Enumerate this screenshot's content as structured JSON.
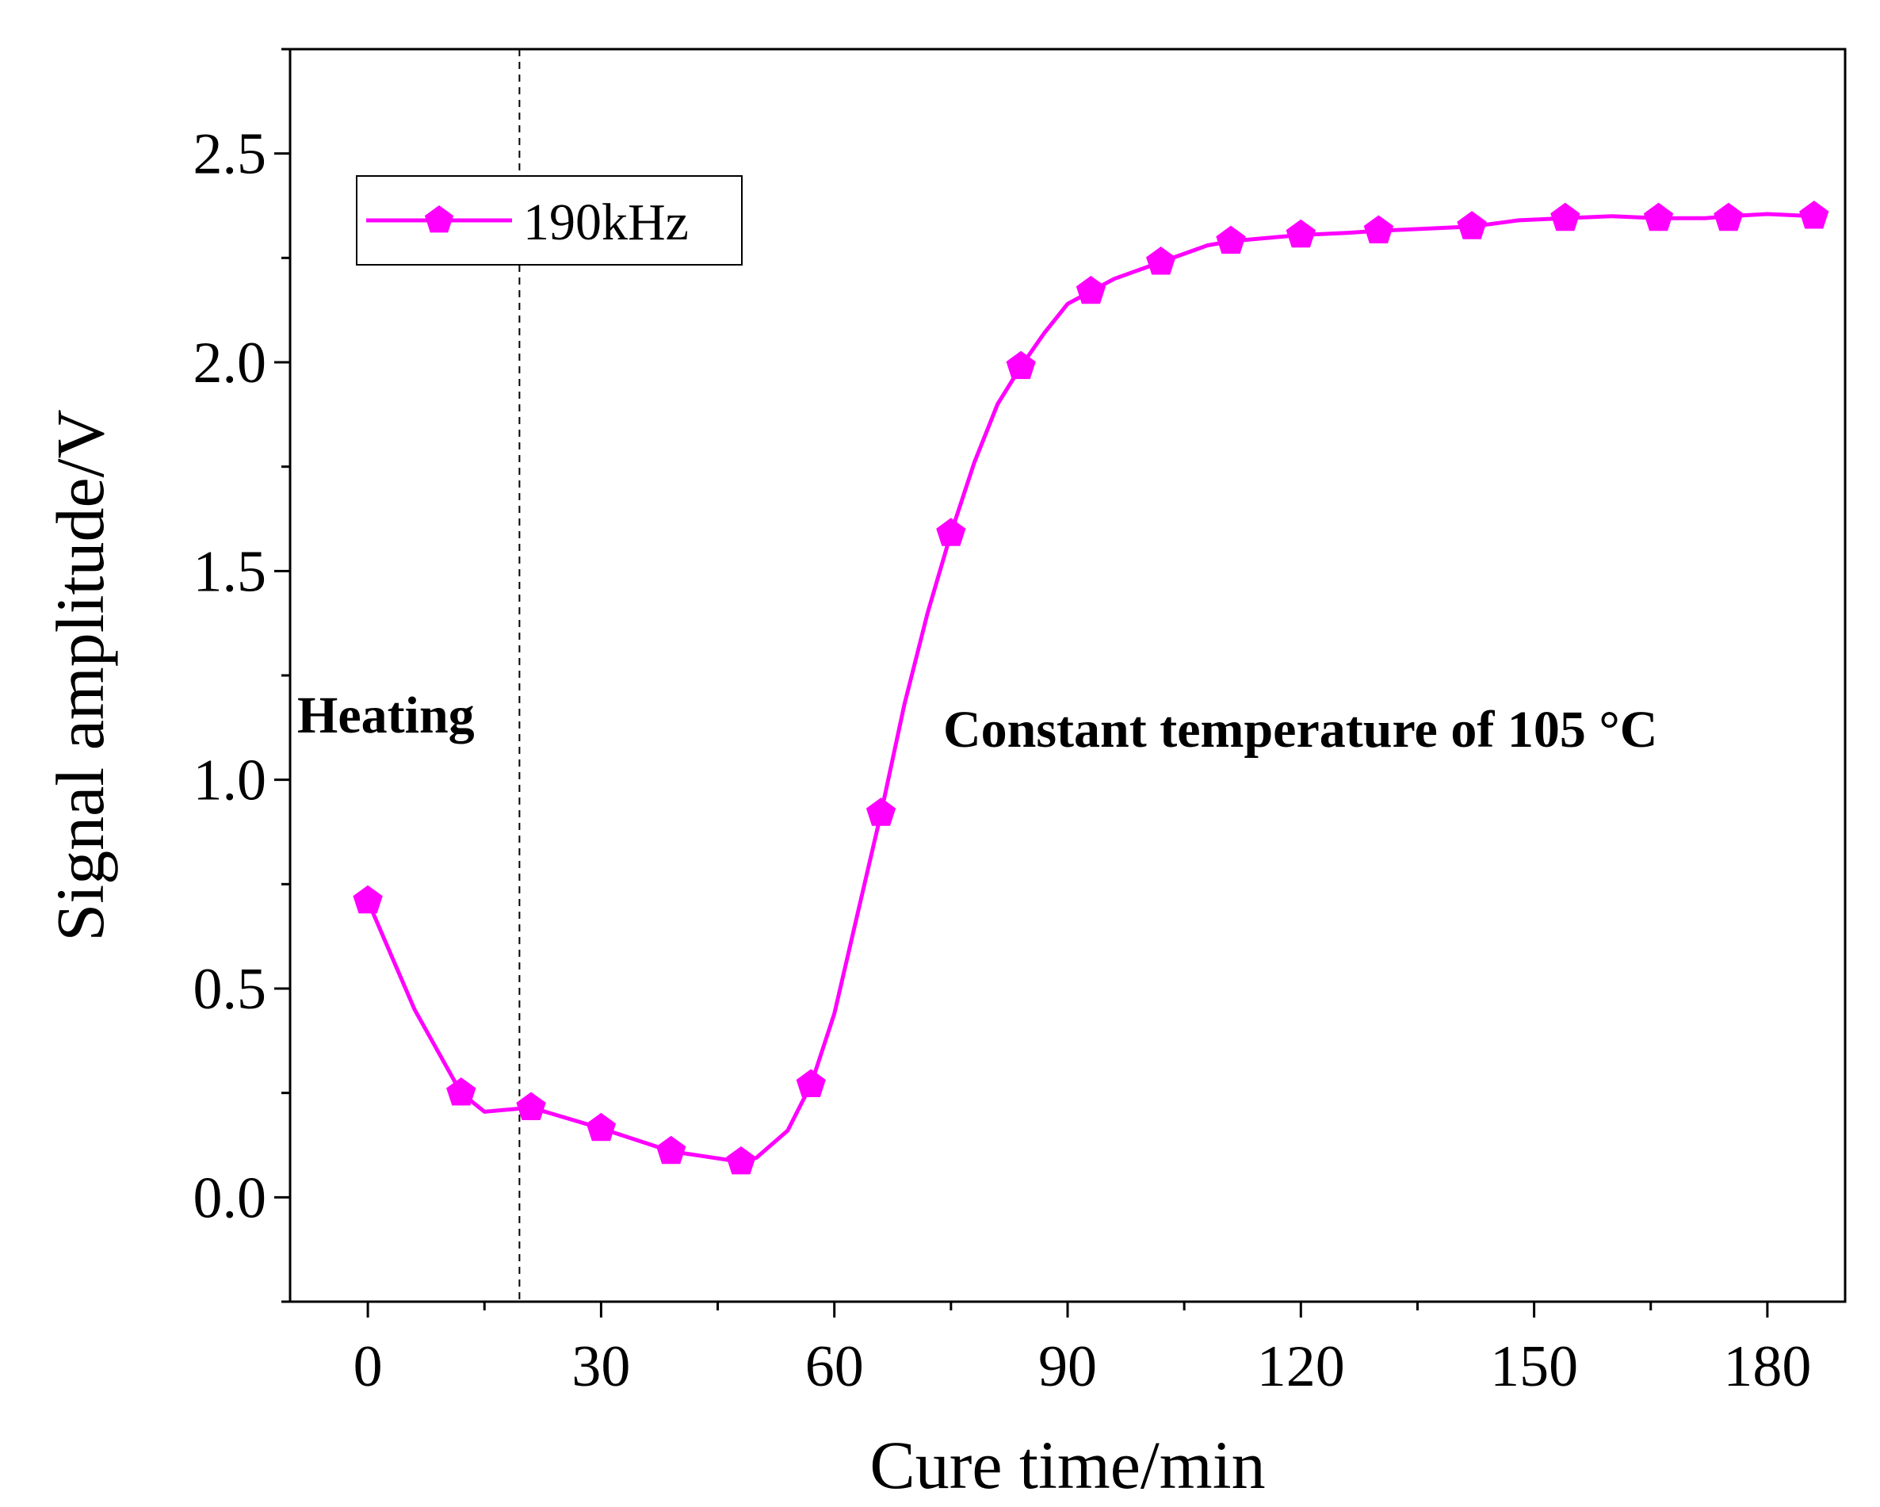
{
  "chart_data": {
    "type": "line",
    "xlabel": "Cure time/min",
    "ylabel": "Signal amplitude/V",
    "xlim": [
      -10,
      190
    ],
    "ylim": [
      -0.25,
      2.75
    ],
    "xticks": [
      0,
      30,
      60,
      90,
      120,
      150,
      180
    ],
    "xtick_labels": [
      "0",
      "30",
      "60",
      "90",
      "120",
      "150",
      "180"
    ],
    "yticks": [
      0.0,
      0.5,
      1.0,
      1.5,
      2.0,
      2.5
    ],
    "ytick_labels": [
      "0.0",
      "0.5",
      "1.0",
      "1.5",
      "2.0",
      "2.5"
    ],
    "grid": false,
    "legend_position": "top-left",
    "series": [
      {
        "name": "190kHz",
        "color": "#ff00ff",
        "marker": "pentagon",
        "line_x": [
          0,
          6,
          12,
          15,
          21,
          30,
          39,
          48,
          50,
          54,
          57,
          60,
          63,
          66,
          69,
          72,
          75,
          78,
          81,
          84,
          87,
          90,
          93,
          96,
          102,
          108,
          111,
          117,
          120,
          126,
          130,
          136,
          142,
          148,
          154,
          160,
          166,
          172,
          175,
          180,
          186
        ],
        "line_y": [
          0.71,
          0.45,
          0.25,
          0.205,
          0.215,
          0.165,
          0.11,
          0.085,
          0.095,
          0.16,
          0.27,
          0.44,
          0.68,
          0.92,
          1.18,
          1.4,
          1.59,
          1.76,
          1.9,
          1.99,
          2.07,
          2.14,
          2.17,
          2.2,
          2.24,
          2.28,
          2.29,
          2.3,
          2.305,
          2.31,
          2.315,
          2.32,
          2.325,
          2.34,
          2.345,
          2.35,
          2.345,
          2.345,
          2.35,
          2.355,
          2.35
        ],
        "marker_x": [
          0,
          12,
          21,
          30,
          39,
          48,
          57,
          66,
          75,
          84,
          93,
          102,
          111,
          120,
          130,
          142,
          154,
          166,
          175,
          186
        ],
        "marker_y": [
          0.71,
          0.25,
          0.215,
          0.165,
          0.11,
          0.085,
          0.27,
          0.92,
          1.59,
          1.99,
          2.17,
          2.24,
          2.29,
          2.305,
          2.315,
          2.325,
          2.345,
          2.345,
          2.345,
          2.35
        ]
      }
    ],
    "annotations": [
      {
        "text": "Heating",
        "anchor_x": 19.5
      },
      {
        "text": "Constant temperature of 105 °C"
      }
    ],
    "divider_x": 19.5
  }
}
